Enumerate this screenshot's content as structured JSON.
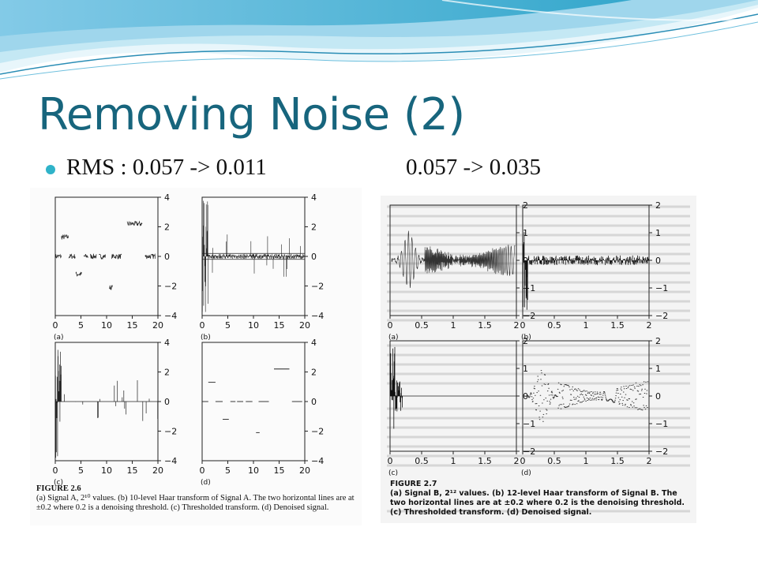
{
  "slide": {
    "title": "Removing Noise (2)",
    "bullet_left": "RMS : 0.057 -> 0.011",
    "bullet_right": "0.057 -> 0.035"
  },
  "figure_a": {
    "x_ticks": [
      "0",
      "5",
      "10",
      "15",
      "20"
    ],
    "y_ticks": [
      "4",
      "2",
      "0",
      "−2",
      "−4"
    ],
    "panel_labels": [
      "(a)",
      "(b)",
      "(c)",
      "(d)"
    ],
    "caption_heading": "FIGURE 2.6",
    "caption_body": "(a) Signal A, 2¹⁰ values. (b) 10-level Haar transform of Signal A. The two horizontal lines are at ±0.2 where 0.2 is a denoising threshold. (c) Thresholded transform. (d) Denoised signal."
  },
  "figure_b": {
    "x_ticks": [
      "0",
      "0.5",
      "1",
      "1.5",
      "2"
    ],
    "y_ticks": [
      "2",
      "1",
      "0",
      "−1",
      "−2"
    ],
    "panel_labels": [
      "(a)",
      "(b)",
      "(c)",
      "(d)"
    ],
    "caption_heading": "FIGURE 2.7",
    "caption_body": "(a) Signal B, 2¹² values. (b) 12-level Haar transform of Signal B. The two horizontal lines are at ±0.2 where 0.2 is the denoising threshold. (c) Thresholded transform. (d) Denoised signal."
  },
  "colors": {
    "title": "#17657d",
    "bullet": "#2fb3c9",
    "wave_dark": "#1b9cc4",
    "wave_light": "#a9dcef"
  }
}
